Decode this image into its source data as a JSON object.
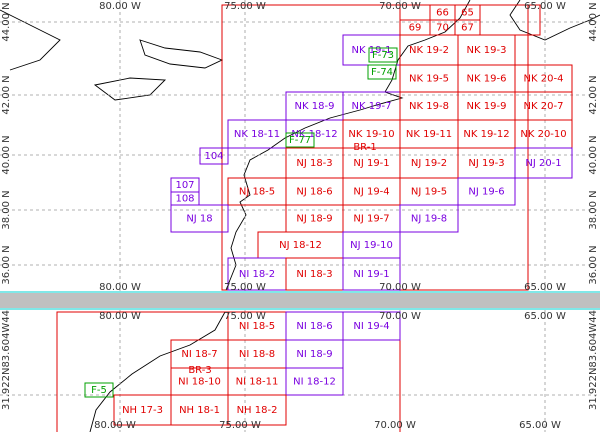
{
  "top_panel": {
    "lon_labels": [
      "80.00 W",
      "75.00 W",
      "70.00 W",
      "65.00 W"
    ],
    "lat_labels": [
      "44.00 N",
      "42.00 N",
      "40.00 N",
      "38.00 N",
      "36.00 N"
    ],
    "cells": [
      {
        "label": "NK 19-1",
        "color": "#7a00e0"
      },
      {
        "label": "NK 19-2",
        "color": "#e00000"
      },
      {
        "label": "NK 19-3",
        "color": "#e00000"
      },
      {
        "label": "NK 19-5",
        "color": "#e00000"
      },
      {
        "label": "NK 19-6",
        "color": "#e00000"
      },
      {
        "label": "NK 20-4",
        "color": "#e00000"
      },
      {
        "label": "NK 18-9",
        "color": "#7a00e0"
      },
      {
        "label": "NK 19-7",
        "color": "#7a00e0"
      },
      {
        "label": "NK 19-8",
        "color": "#e00000"
      },
      {
        "label": "NK 19-9",
        "color": "#e00000"
      },
      {
        "label": "NK 20-7",
        "color": "#e00000"
      },
      {
        "label": "NK 18-11",
        "color": "#7a00e0"
      },
      {
        "label": "NK 18-12",
        "color": "#7a00e0"
      },
      {
        "label": "NK 19-10",
        "color": "#e00000"
      },
      {
        "label": "NK 19-11",
        "color": "#e00000"
      },
      {
        "label": "NK 19-12",
        "color": "#e00000"
      },
      {
        "label": "NK 20-10",
        "color": "#e00000"
      },
      {
        "label": "NJ 18-3",
        "color": "#e00000"
      },
      {
        "label": "NJ 19-1",
        "color": "#e00000"
      },
      {
        "label": "NJ 19-2",
        "color": "#e00000"
      },
      {
        "label": "NJ 19-3",
        "color": "#e00000"
      },
      {
        "label": "NJ 20-1",
        "color": "#7a00e0"
      },
      {
        "label": "NJ 18-5",
        "color": "#e00000"
      },
      {
        "label": "NJ 18-6",
        "color": "#e00000"
      },
      {
        "label": "NJ 19-4",
        "color": "#e00000"
      },
      {
        "label": "NJ 19-5",
        "color": "#e00000"
      },
      {
        "label": "NJ 19-6",
        "color": "#7a00e0"
      },
      {
        "label": "NJ 18-9",
        "color": "#e00000"
      },
      {
        "label": "NJ 19-7",
        "color": "#e00000"
      },
      {
        "label": "NJ 19-8",
        "color": "#7a00e0"
      },
      {
        "label": "NJ 18-12",
        "color": "#e00000"
      },
      {
        "label": "NJ 19-10",
        "color": "#7a00e0"
      },
      {
        "label": "NI 18-2",
        "color": "#7a00e0"
      },
      {
        "label": "NI 18-3",
        "color": "#e00000"
      },
      {
        "label": "NI 19-1",
        "color": "#7a00e0"
      },
      {
        "label": "NJ 18",
        "color": "#7a00e0"
      },
      {
        "label": "104",
        "color": "#7a00e0"
      },
      {
        "label": "107",
        "color": "#7a00e0"
      },
      {
        "label": "108",
        "color": "#7a00e0"
      },
      {
        "label": "66",
        "color": "#e00000"
      },
      {
        "label": "65",
        "color": "#e00000"
      },
      {
        "label": "67",
        "color": "#e00000"
      },
      {
        "label": "70",
        "color": "#e00000"
      },
      {
        "label": "69",
        "color": "#e00000"
      }
    ],
    "annotations": [
      {
        "label": "BR-1",
        "color": "#e00000"
      },
      {
        "label": "F-73",
        "color": "#00a000"
      },
      {
        "label": "F-74",
        "color": "#00a000"
      },
      {
        "label": "F-77",
        "color": "#00a000"
      }
    ]
  },
  "bottom_panel": {
    "lon_labels_top": [
      "80.00 W",
      "75.00 W",
      "70.00 W",
      "65.00 W"
    ],
    "lon_labels_bottom": [
      "80.00 W",
      "75.00 W",
      "70.00 W",
      "65.00 W"
    ],
    "side_labels": [
      "31.922N83.604W44",
      "31.922N83.604W44"
    ],
    "cells": [
      {
        "label": "NI 18-5",
        "color": "#e00000"
      },
      {
        "label": "NI 18-6",
        "color": "#7a00e0"
      },
      {
        "label": "NI 19-4",
        "color": "#7a00e0"
      },
      {
        "label": "NI 18-7",
        "color": "#e00000"
      },
      {
        "label": "NI 18-8",
        "color": "#e00000"
      },
      {
        "label": "NI 18-9",
        "color": "#7a00e0"
      },
      {
        "label": "NI 18-10",
        "color": "#e00000"
      },
      {
        "label": "NI 18-11",
        "color": "#e00000"
      },
      {
        "label": "NI 18-12",
        "color": "#7a00e0"
      },
      {
        "label": "NH 17-3",
        "color": "#e00000"
      },
      {
        "label": "NH 18-1",
        "color": "#e00000"
      },
      {
        "label": "NH 18-2",
        "color": "#e00000"
      }
    ],
    "annotations": [
      {
        "label": "BR-3",
        "color": "#e00000"
      },
      {
        "label": "F-5",
        "color": "#00a000"
      }
    ]
  }
}
